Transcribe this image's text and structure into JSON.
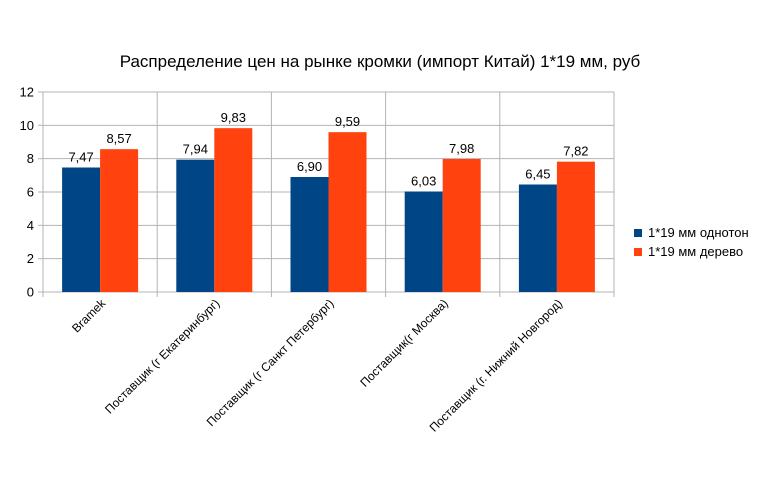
{
  "chart_data": {
    "type": "bar",
    "title": "Распределение цен на рынке кромки (импорт Китай) 1*19 мм, руб",
    "categories": [
      "Bramek",
      "Поставщик (г Екатеринбург)",
      "Поставщик (г Санкт Петербург)",
      "Поставщик(г Москва)",
      "Поставщик (г. Нижний Новгород)"
    ],
    "series": [
      {
        "name": "1*19 мм однотон",
        "values": [
          7.47,
          7.94,
          6.9,
          6.03,
          6.45
        ],
        "labels": [
          "7,47",
          "7,94",
          "6,90",
          "6,03",
          "6,45"
        ],
        "color": "#004586"
      },
      {
        "name": "1*19 мм дерево",
        "values": [
          8.57,
          9.83,
          9.59,
          7.98,
          7.82
        ],
        "labels": [
          "8,57",
          "9,83",
          "9,59",
          "7,98",
          "7,82"
        ],
        "color": "#ff420e"
      }
    ],
    "ylim": [
      0,
      12
    ],
    "yticks": [
      "0",
      "2",
      "4",
      "6",
      "8",
      "10",
      "12"
    ],
    "ytick_values": [
      0,
      2,
      4,
      6,
      8,
      10,
      12
    ],
    "grid": true,
    "legend_position": "right"
  }
}
